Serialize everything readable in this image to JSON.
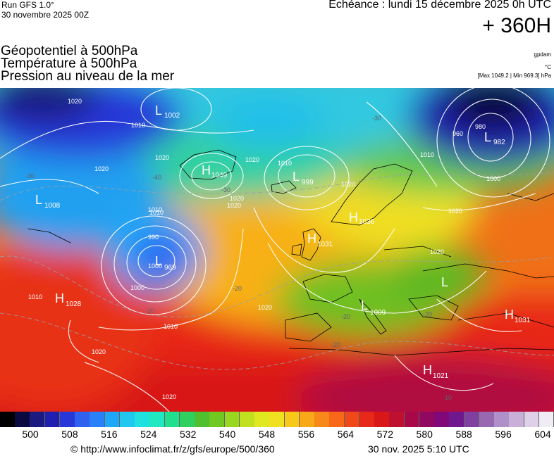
{
  "header": {
    "run": "Run GFS 1.0°",
    "run_date": "30 novembre 2025 00Z",
    "valid_time": "Echéance : lundi 15 décembre 2025 0h UTC",
    "lead": "+ 360H"
  },
  "params": [
    "Géopotentiel à 500hPa",
    "Température à 500hPa",
    "Pression au niveau de la mer"
  ],
  "units": {
    "geopotential": "gpdam",
    "temperature": "°C",
    "pressure_range": "[Max 1049.2 | Min 969.3] hPa"
  },
  "colorbar": {
    "labels": [
      "500",
      "508",
      "516",
      "524",
      "532",
      "540",
      "548",
      "556",
      "564",
      "572",
      "580",
      "588",
      "596",
      "604"
    ],
    "colors": [
      "#000000",
      "#0a0a40",
      "#1a1a80",
      "#2020b0",
      "#2838d8",
      "#3060f0",
      "#2a80f8",
      "#20a8f8",
      "#20c8f0",
      "#20e0e0",
      "#20e8c0",
      "#20e090",
      "#30d060",
      "#50c030",
      "#70c820",
      "#98d820",
      "#c0e020",
      "#e0e820",
      "#f0e020",
      "#f8c818",
      "#f8a818",
      "#f88818",
      "#f86818",
      "#f04818",
      "#e82818",
      "#d81818",
      "#c01030",
      "#a80848",
      "#900860",
      "#800878",
      "#701890",
      "#8040a0",
      "#9868b0",
      "#b090c8",
      "#c8b0d8",
      "#ddd0e8",
      "#f0ecf4"
    ]
  },
  "systems": [
    {
      "type": "L",
      "value": "1002"
    },
    {
      "type": "H",
      "value": "1049"
    },
    {
      "type": "L",
      "value": "999"
    },
    {
      "type": "L",
      "value": "982"
    },
    {
      "type": "L",
      "value": "1008"
    },
    {
      "type": "L",
      "value": "969"
    },
    {
      "type": "H",
      "value": "1036"
    },
    {
      "type": "H",
      "value": "1031"
    },
    {
      "type": "L",
      "value": "1009"
    },
    {
      "type": "H",
      "value": "1028"
    },
    {
      "type": "H",
      "value": "1031"
    },
    {
      "type": "H",
      "value": "1021"
    },
    {
      "type": "L",
      "value": ""
    }
  ],
  "isobar_labels": [
    "1020",
    "1010",
    "1020",
    "1020",
    "1020",
    "1020",
    "1010",
    "990",
    "1000",
    "1010",
    "1020",
    "1020",
    "1020",
    "1020",
    "1000",
    "1010",
    "1020",
    "1020",
    "1010",
    "980",
    "960",
    "1000",
    "1010",
    "1020",
    "1010"
  ],
  "temp_labels": [
    "-30",
    "-40",
    "-30",
    "-30",
    "-20",
    "-20",
    "-20",
    "-20",
    "-20",
    "-10"
  ],
  "footer": {
    "url": "© http://www.infoclimat.fr/z/gfs/europe/500/360",
    "stamp": "30 nov. 2025  5:10 UTC"
  }
}
